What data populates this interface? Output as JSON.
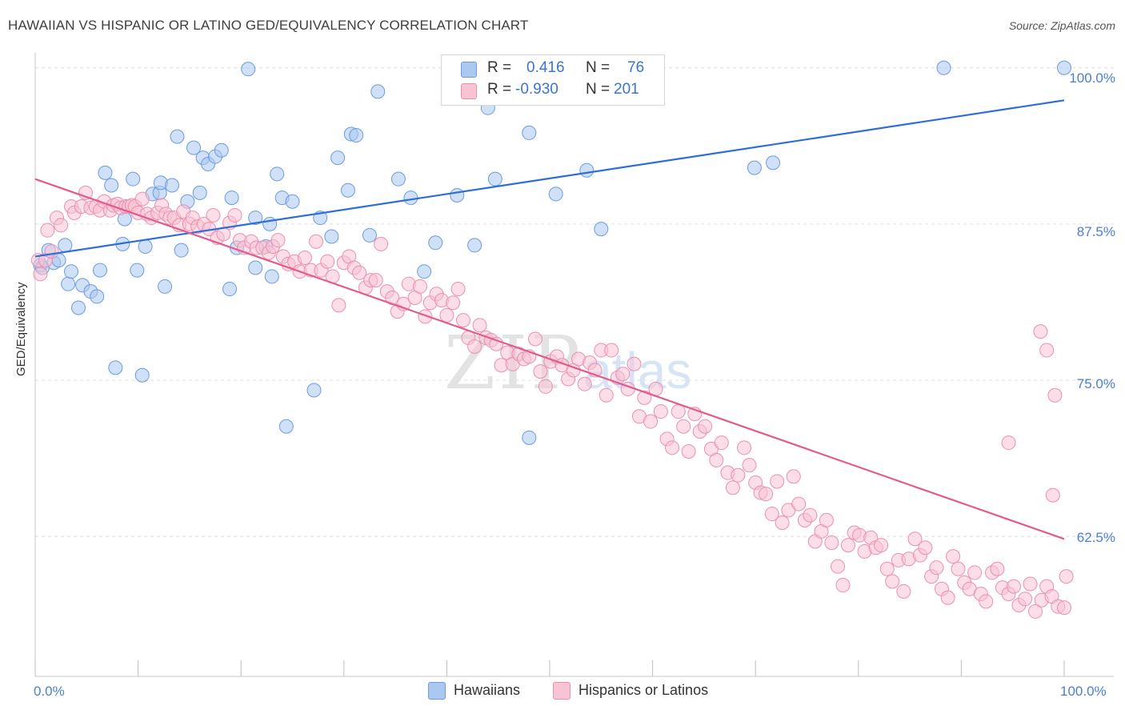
{
  "title": "HAWAIIAN VS HISPANIC OR LATINO GED/EQUIVALENCY CORRELATION CHART",
  "source": "Source: ZipAtlas.com",
  "watermark": {
    "part1": "ZIP",
    "part2": "atlas"
  },
  "legend": {
    "r_label": "R =",
    "n_label": "N =",
    "rows": [
      {
        "r": "0.416",
        "n": "76",
        "color": "#aac8f0",
        "border": "#6b9be0"
      },
      {
        "r": "-0.930",
        "n": "201",
        "color": "#f8c3d3",
        "border": "#ec8faf"
      }
    ]
  },
  "bottom_legend": [
    "Hawaiians",
    "Hispanics or Latinos"
  ],
  "colors": {
    "blue_fill": "#aac8f0",
    "blue_stroke": "#6b9be0",
    "blue_line": "#2e6ed6",
    "pink_fill": "#f8c3d3",
    "pink_stroke": "#ec8faf",
    "pink_line": "#e25b8e",
    "tick_text": "#4a7fd4"
  },
  "chart_data": {
    "type": "scatter",
    "title": "HAWAIIAN VS HISPANIC OR LATINO GED/EQUIVALENCY CORRELATION CHART",
    "xlabel": "",
    "ylabel": "GED/Equivalency",
    "x_tick_labels": [
      "0.0%",
      "100.0%"
    ],
    "y_tick_labels": [
      "62.5%",
      "75.0%",
      "87.5%",
      "100.0%"
    ],
    "y_ticks": [
      62.5,
      75.0,
      87.5,
      100.0
    ],
    "xlim": [
      0,
      100
    ],
    "ylim": [
      51.3,
      101.2
    ],
    "grid": true,
    "legend_position": "top-center",
    "series": [
      {
        "name": "Hawaiians",
        "trend": [
          [
            0,
            84.9
          ],
          [
            100,
            97.4
          ]
        ],
        "points": [
          [
            0.5,
            84.2
          ],
          [
            0.7,
            84.0
          ],
          [
            1.3,
            85.4
          ],
          [
            1.8,
            84.4
          ],
          [
            2.3,
            84.6
          ],
          [
            2.9,
            85.8
          ],
          [
            3.2,
            82.7
          ],
          [
            3.5,
            83.7
          ],
          [
            4.2,
            80.8
          ],
          [
            4.6,
            82.6
          ],
          [
            5.4,
            82.1
          ],
          [
            6.0,
            81.7
          ],
          [
            6.3,
            83.8
          ],
          [
            6.8,
            91.6
          ],
          [
            7.4,
            90.6
          ],
          [
            7.8,
            76.0
          ],
          [
            8.5,
            85.9
          ],
          [
            8.7,
            87.9
          ],
          [
            9.5,
            91.1
          ],
          [
            9.9,
            83.8
          ],
          [
            10.4,
            75.4
          ],
          [
            10.7,
            85.7
          ],
          [
            11.4,
            89.9
          ],
          [
            12.1,
            90.0
          ],
          [
            12.2,
            90.8
          ],
          [
            12.6,
            82.5
          ],
          [
            13.3,
            90.6
          ],
          [
            13.8,
            94.5
          ],
          [
            14.2,
            85.4
          ],
          [
            14.8,
            89.3
          ],
          [
            15.4,
            93.6
          ],
          [
            16.0,
            90.0
          ],
          [
            16.3,
            92.8
          ],
          [
            16.8,
            92.3
          ],
          [
            17.5,
            92.9
          ],
          [
            18.1,
            93.4
          ],
          [
            18.9,
            82.3
          ],
          [
            19.1,
            89.6
          ],
          [
            19.6,
            85.6
          ],
          [
            20.7,
            99.9
          ],
          [
            21.4,
            84.0
          ],
          [
            21.4,
            88.0
          ],
          [
            22.8,
            87.5
          ],
          [
            22.4,
            85.7
          ],
          [
            23.0,
            83.3
          ],
          [
            23.5,
            91.5
          ],
          [
            24.0,
            89.6
          ],
          [
            24.4,
            71.3
          ],
          [
            25.0,
            89.3
          ],
          [
            27.1,
            74.2
          ],
          [
            27.7,
            88.0
          ],
          [
            28.8,
            86.5
          ],
          [
            29.4,
            92.8
          ],
          [
            30.4,
            90.2
          ],
          [
            30.7,
            94.7
          ],
          [
            31.2,
            94.6
          ],
          [
            32.5,
            86.6
          ],
          [
            33.3,
            98.1
          ],
          [
            35.3,
            91.1
          ],
          [
            36.5,
            89.6
          ],
          [
            37.8,
            83.7
          ],
          [
            38.9,
            86.0
          ],
          [
            41.0,
            89.8
          ],
          [
            42.7,
            85.8
          ],
          [
            44.7,
            91.1
          ],
          [
            44.0,
            96.8
          ],
          [
            48.0,
            94.8
          ],
          [
            48.0,
            70.4
          ],
          [
            50.6,
            89.9
          ],
          [
            53.6,
            91.8
          ],
          [
            55.0,
            87.1
          ],
          [
            69.9,
            92.0
          ],
          [
            71.7,
            92.4
          ],
          [
            88.3,
            100.0
          ],
          [
            100.0,
            100.0
          ],
          [
            59.0,
            100.0
          ]
        ]
      },
      {
        "name": "Hispanics or Latinos",
        "trend": [
          [
            0,
            91.1
          ],
          [
            100,
            62.3
          ]
        ],
        "points": [
          [
            0.3,
            84.6
          ],
          [
            0.5,
            83.5
          ],
          [
            1.0,
            84.6
          ],
          [
            1.2,
            87.0
          ],
          [
            1.6,
            85.3
          ],
          [
            2.1,
            88.0
          ],
          [
            2.5,
            87.4
          ],
          [
            3.5,
            88.9
          ],
          [
            3.8,
            88.4
          ],
          [
            4.5,
            88.9
          ],
          [
            4.9,
            90.0
          ],
          [
            5.4,
            88.8
          ],
          [
            5.9,
            88.9
          ],
          [
            6.3,
            88.6
          ],
          [
            6.7,
            89.3
          ],
          [
            7.3,
            88.6
          ],
          [
            7.6,
            89.0
          ],
          [
            8.0,
            89.1
          ],
          [
            8.3,
            88.8
          ],
          [
            8.8,
            88.9
          ],
          [
            9.1,
            88.9
          ],
          [
            9.4,
            89.0
          ],
          [
            9.7,
            88.9
          ],
          [
            10.0,
            88.4
          ],
          [
            10.4,
            89.5
          ],
          [
            10.9,
            88.3
          ],
          [
            11.3,
            88.0
          ],
          [
            11.9,
            88.4
          ],
          [
            12.3,
            89.0
          ],
          [
            12.7,
            88.3
          ],
          [
            13.1,
            88.0
          ],
          [
            13.5,
            88.0
          ],
          [
            14.0,
            87.4
          ],
          [
            14.4,
            88.5
          ],
          [
            15.0,
            87.5
          ],
          [
            15.3,
            88.0
          ],
          [
            15.8,
            87.3
          ],
          [
            16.4,
            87.5
          ],
          [
            16.9,
            87.1
          ],
          [
            17.3,
            88.2
          ],
          [
            17.7,
            86.4
          ],
          [
            18.3,
            86.7
          ],
          [
            18.9,
            87.6
          ],
          [
            19.4,
            88.2
          ],
          [
            19.9,
            86.2
          ],
          [
            20.3,
            85.6
          ],
          [
            21.0,
            86.1
          ],
          [
            21.5,
            85.6
          ],
          [
            22.1,
            85.6
          ],
          [
            22.7,
            85.2
          ],
          [
            23.1,
            85.7
          ],
          [
            23.6,
            86.2
          ],
          [
            24.1,
            84.9
          ],
          [
            24.6,
            84.3
          ],
          [
            25.2,
            84.5
          ],
          [
            25.7,
            83.7
          ],
          [
            26.2,
            84.8
          ],
          [
            26.8,
            83.8
          ],
          [
            27.3,
            86.1
          ],
          [
            27.8,
            83.8
          ],
          [
            28.4,
            84.5
          ],
          [
            28.9,
            83.3
          ],
          [
            29.5,
            81.0
          ],
          [
            30.0,
            84.4
          ],
          [
            30.5,
            84.9
          ],
          [
            31.0,
            84.0
          ],
          [
            31.5,
            83.6
          ],
          [
            32.1,
            82.4
          ],
          [
            32.6,
            83.0
          ],
          [
            33.1,
            83.0
          ],
          [
            33.6,
            85.9
          ],
          [
            34.2,
            82.1
          ],
          [
            34.7,
            81.6
          ],
          [
            35.2,
            80.5
          ],
          [
            35.8,
            81.1
          ],
          [
            36.3,
            82.7
          ],
          [
            36.9,
            81.6
          ],
          [
            37.4,
            82.5
          ],
          [
            37.9,
            80.1
          ],
          [
            38.4,
            81.2
          ],
          [
            39.0,
            81.9
          ],
          [
            39.5,
            81.4
          ],
          [
            40.0,
            80.2
          ],
          [
            40.6,
            81.2
          ],
          [
            41.1,
            82.3
          ],
          [
            41.6,
            79.8
          ],
          [
            42.1,
            78.4
          ],
          [
            42.7,
            77.7
          ],
          [
            43.2,
            79.4
          ],
          [
            43.8,
            78.4
          ],
          [
            44.3,
            78.2
          ],
          [
            44.8,
            77.9
          ],
          [
            45.3,
            76.2
          ],
          [
            45.9,
            77.2
          ],
          [
            46.4,
            76.3
          ],
          [
            47.0,
            77.1
          ],
          [
            47.5,
            76.7
          ],
          [
            48.0,
            76.9
          ],
          [
            48.6,
            78.3
          ],
          [
            49.1,
            75.7
          ],
          [
            49.6,
            74.5
          ],
          [
            50.1,
            76.5
          ],
          [
            50.7,
            76.9
          ],
          [
            51.2,
            76.2
          ],
          [
            51.8,
            75.1
          ],
          [
            52.3,
            75.8
          ],
          [
            52.8,
            76.7
          ],
          [
            53.4,
            74.7
          ],
          [
            53.9,
            76.4
          ],
          [
            54.4,
            75.8
          ],
          [
            55.0,
            77.4
          ],
          [
            55.5,
            73.8
          ],
          [
            56.0,
            77.4
          ],
          [
            56.6,
            75.2
          ],
          [
            57.1,
            75.5
          ],
          [
            57.6,
            74.3
          ],
          [
            58.2,
            76.3
          ],
          [
            58.7,
            72.1
          ],
          [
            59.2,
            73.6
          ],
          [
            59.8,
            71.7
          ],
          [
            60.3,
            74.3
          ],
          [
            60.8,
            72.5
          ],
          [
            61.4,
            70.3
          ],
          [
            61.9,
            69.6
          ],
          [
            62.5,
            72.5
          ],
          [
            63.0,
            71.3
          ],
          [
            63.5,
            69.3
          ],
          [
            64.1,
            72.3
          ],
          [
            64.6,
            70.9
          ],
          [
            65.1,
            71.3
          ],
          [
            65.7,
            69.5
          ],
          [
            66.2,
            68.6
          ],
          [
            66.7,
            70.0
          ],
          [
            67.3,
            67.6
          ],
          [
            67.8,
            66.4
          ],
          [
            68.3,
            67.4
          ],
          [
            68.9,
            69.6
          ],
          [
            69.4,
            68.2
          ],
          [
            70.0,
            66.8
          ],
          [
            70.5,
            66.0
          ],
          [
            71.0,
            65.9
          ],
          [
            71.6,
            64.3
          ],
          [
            72.1,
            66.9
          ],
          [
            72.6,
            63.6
          ],
          [
            73.2,
            64.6
          ],
          [
            73.7,
            67.3
          ],
          [
            74.2,
            65.1
          ],
          [
            74.8,
            63.8
          ],
          [
            75.3,
            64.2
          ],
          [
            75.8,
            62.1
          ],
          [
            76.4,
            62.9
          ],
          [
            76.9,
            63.8
          ],
          [
            77.4,
            62.0
          ],
          [
            78.0,
            60.1
          ],
          [
            78.5,
            58.6
          ],
          [
            79.0,
            61.8
          ],
          [
            79.6,
            62.8
          ],
          [
            80.1,
            62.6
          ],
          [
            80.6,
            61.3
          ],
          [
            81.2,
            62.4
          ],
          [
            81.7,
            61.6
          ],
          [
            82.2,
            61.8
          ],
          [
            82.8,
            59.9
          ],
          [
            83.3,
            58.9
          ],
          [
            83.9,
            60.6
          ],
          [
            84.4,
            58.1
          ],
          [
            84.9,
            60.7
          ],
          [
            85.5,
            62.3
          ],
          [
            86.0,
            61.0
          ],
          [
            86.5,
            61.6
          ],
          [
            87.1,
            59.3
          ],
          [
            87.6,
            60.0
          ],
          [
            88.1,
            58.3
          ],
          [
            88.7,
            57.6
          ],
          [
            89.2,
            60.9
          ],
          [
            89.7,
            59.9
          ],
          [
            90.3,
            58.8
          ],
          [
            90.8,
            58.3
          ],
          [
            91.3,
            59.6
          ],
          [
            91.9,
            57.9
          ],
          [
            92.4,
            57.3
          ],
          [
            93.0,
            59.6
          ],
          [
            93.5,
            59.9
          ],
          [
            94.0,
            58.4
          ],
          [
            94.6,
            57.9
          ],
          [
            95.1,
            58.5
          ],
          [
            95.6,
            57.0
          ],
          [
            96.2,
            57.5
          ],
          [
            96.7,
            58.7
          ],
          [
            97.2,
            56.5
          ],
          [
            97.8,
            57.4
          ],
          [
            98.3,
            58.5
          ],
          [
            98.8,
            57.7
          ],
          [
            99.4,
            56.9
          ],
          [
            100.0,
            56.8
          ],
          [
            100.2,
            59.3
          ],
          [
            94.6,
            70.0
          ],
          [
            97.7,
            78.9
          ],
          [
            98.3,
            77.4
          ],
          [
            99.1,
            73.8
          ],
          [
            98.9,
            65.8
          ]
        ]
      }
    ]
  }
}
